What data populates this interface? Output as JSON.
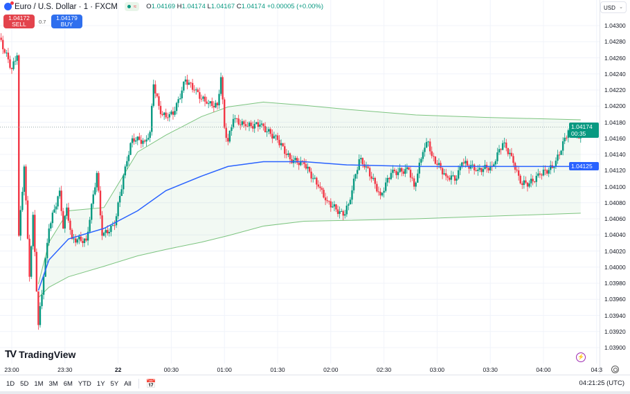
{
  "header": {
    "symbol": "Euro / U.S. Dollar · 1 · FXCM",
    "ohlc": {
      "o_label": "O",
      "o": "1.04169",
      "h_label": "H",
      "h": "1.04174",
      "l_label": "L",
      "l": "1.04167",
      "c_label": "C",
      "c": "1.04174",
      "change": "+0.00005 (+0.00%)"
    }
  },
  "trade": {
    "sell_price": "1.04172",
    "sell_label": "SELL",
    "spread": "0.7",
    "buy_price": "1.04179",
    "buy_label": "BUY"
  },
  "currency": "USD",
  "price_labels": {
    "last": "1.04174",
    "countdown": "00:35",
    "vwap": "1.04125"
  },
  "colors": {
    "up": "#089981",
    "down": "#f23645",
    "vwap": "#2962ff",
    "bands": "#7cc47f"
  },
  "brand": "TradingView",
  "time_axis": {
    "labels": [
      "23:00",
      "23:30",
      "22",
      "00:30",
      "01:00",
      "01:30",
      "02:00",
      "02:30",
      "03:00",
      "03:30",
      "04:00",
      "04:3"
    ]
  },
  "ranges": [
    "1D",
    "5D",
    "1M",
    "3M",
    "6M",
    "YTD",
    "1Y",
    "5Y",
    "All"
  ],
  "clock": "04:21:25 (UTC)",
  "chart_data": {
    "type": "candlestick",
    "interval": "1 minute",
    "ylim": [
      1.039,
      1.043
    ],
    "y_ticks": [
      "1.04300",
      "1.04280",
      "1.04260",
      "1.04240",
      "1.04220",
      "1.04200",
      "1.04180",
      "1.04160",
      "1.04140",
      "1.04120",
      "1.04100",
      "1.04080",
      "1.04060",
      "1.04040",
      "1.04020",
      "1.04000",
      "1.03980",
      "1.03960",
      "1.03940",
      "1.03920",
      "1.03900"
    ],
    "close_path": [
      [
        "22:53",
        1.04285
      ],
      [
        "23:00",
        1.04246
      ],
      [
        "23:03",
        1.04263
      ],
      [
        "23:04",
        1.04039
      ],
      [
        "23:07",
        1.04125
      ],
      [
        "23:10",
        1.03988
      ],
      [
        "23:12",
        1.04065
      ],
      [
        "23:15",
        1.03928
      ],
      [
        "23:18",
        1.03988
      ],
      [
        "23:21",
        1.04048
      ],
      [
        "23:27",
        1.04095
      ],
      [
        "23:29",
        1.04048
      ],
      [
        "23:31",
        1.04074
      ],
      [
        "23:34",
        1.04035
      ],
      [
        "23:42",
        1.04033
      ],
      [
        "23:48",
        1.04117
      ],
      [
        "23:51",
        1.04039
      ],
      [
        "23:58",
        1.04052
      ],
      [
        "00:04",
        1.04125
      ],
      [
        "00:08",
        1.0416
      ],
      [
        "00:15",
        1.04156
      ],
      [
        "00:18",
        1.04168
      ],
      [
        "00:20",
        1.04227
      ],
      [
        "00:24",
        1.0419
      ],
      [
        "00:28",
        1.04186
      ],
      [
        "00:32",
        1.04194
      ],
      [
        "00:38",
        1.04233
      ],
      [
        "00:43",
        1.0422
      ],
      [
        "00:50",
        1.04203
      ],
      [
        "00:56",
        1.04201
      ],
      [
        "00:58",
        1.04236
      ],
      [
        "01:00",
        1.04173
      ],
      [
        "01:02",
        1.04156
      ],
      [
        "01:05",
        1.04184
      ],
      [
        "01:12",
        1.04175
      ],
      [
        "01:20",
        1.04177
      ],
      [
        "01:30",
        1.04158
      ],
      [
        "01:37",
        1.04134
      ],
      [
        "01:45",
        1.04128
      ],
      [
        "01:53",
        1.041
      ],
      [
        "01:58",
        1.04082
      ],
      [
        "02:07",
        1.04064
      ],
      [
        "02:10",
        1.04078
      ],
      [
        "02:16",
        1.04134
      ],
      [
        "02:20",
        1.04125
      ],
      [
        "02:28",
        1.04089
      ],
      [
        "02:34",
        1.04117
      ],
      [
        "02:44",
        1.04121
      ],
      [
        "02:47",
        1.041
      ],
      [
        "02:52",
        1.04143
      ],
      [
        "02:55",
        1.04156
      ],
      [
        "02:57",
        1.04138
      ],
      [
        "03:05",
        1.04113
      ],
      [
        "03:11",
        1.0411
      ],
      [
        "03:14",
        1.0413
      ],
      [
        "03:23",
        1.04121
      ],
      [
        "03:31",
        1.04125
      ],
      [
        "03:37",
        1.04154
      ],
      [
        "03:42",
        1.04138
      ],
      [
        "03:47",
        1.04104
      ],
      [
        "03:52",
        1.04104
      ],
      [
        "03:58",
        1.04115
      ],
      [
        "04:06",
        1.04125
      ],
      [
        "04:14",
        1.0417
      ],
      [
        "04:17",
        1.04167
      ],
      [
        "04:20",
        1.0416
      ],
      [
        "04:21",
        1.04174
      ]
    ],
    "bands": {
      "times": [
        "23:15",
        "23:21",
        "23:32",
        "23:52",
        "00:11",
        "00:27",
        "00:47",
        "01:02",
        "01:22",
        "01:45",
        "02:09",
        "02:48",
        "03:27",
        "04:21"
      ],
      "vwap": [
        1.03971,
        1.04009,
        1.04035,
        1.04048,
        1.0407,
        1.04095,
        1.04113,
        1.04125,
        1.04131,
        1.04131,
        1.04127,
        1.04125,
        1.04125,
        1.04125
      ],
      "upper": [
        1.03979,
        1.04031,
        1.0407,
        1.04074,
        1.04143,
        1.04164,
        1.04187,
        1.04199,
        1.04205,
        1.04201,
        1.04196,
        1.04189,
        1.04186,
        1.04183
      ],
      "lower": [
        1.03962,
        1.03975,
        1.03988,
        1.04001,
        1.04014,
        1.04022,
        1.04031,
        1.04039,
        1.04051,
        1.04057,
        1.04058,
        1.0406,
        1.04063,
        1.04067
      ]
    },
    "last_price": 1.04174
  }
}
